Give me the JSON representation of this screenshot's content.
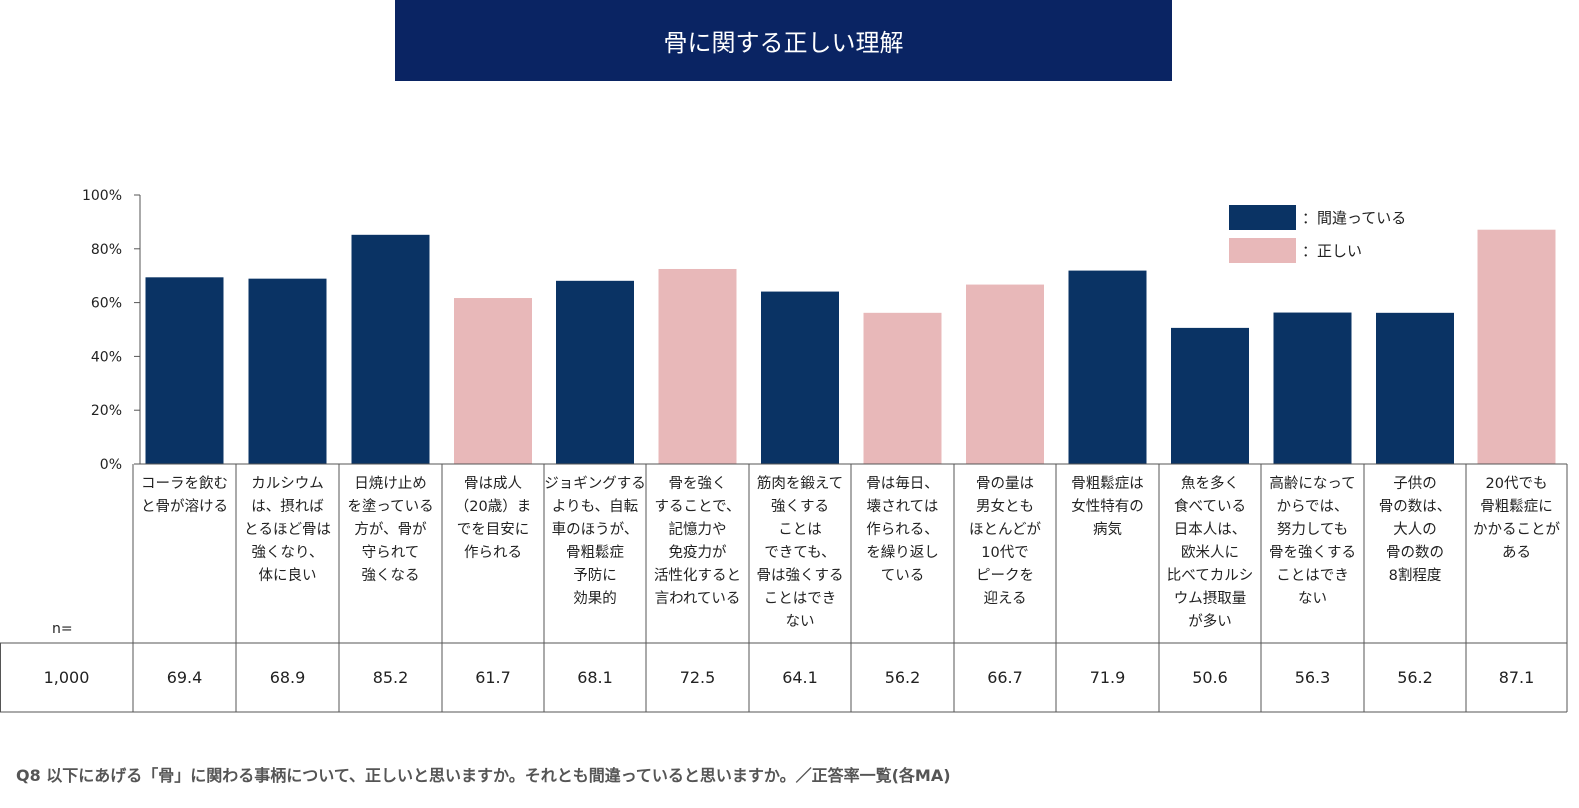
{
  "title": "骨に関する正しい理解",
  "colors": {
    "wrong": "#0a3364",
    "correct": "#e8b8b9",
    "banner": "#0a2463"
  },
  "legend": [
    {
      "label": "：間違っている",
      "color_key": "wrong"
    },
    {
      "label": "：正しい",
      "color_key": "correct"
    }
  ],
  "n_label": "n=",
  "n_value": "1,000",
  "question": "Q8  以下にあげる「骨」に関わる事柄について、正しいと思いますか。それとも間違っていると思いますか。／正答率一覧(各MA)",
  "chart_data": {
    "type": "bar",
    "ylim": [
      0,
      100
    ],
    "yticks": [
      "0%",
      "20%",
      "40%",
      "60%",
      "80%",
      "100%"
    ],
    "categories": [
      "コーラを飲む\nと骨が溶ける",
      "カルシウム\nは、摂れば\nとるほど骨は\n強くなり、\n体に良い",
      "日焼け止め\nを塗っている\n方が、骨が\n守られて\n強くなる",
      "骨は成人\n（20歳）ま\nでを目安に\n作られる",
      "ジョギングする\nよりも、自転\n車のほうが、\n骨粗鬆症\n予防に\n効果的",
      "骨を強く\nすることで、\n記憶力や\n免疫力が\n活性化すると\n言われている",
      "筋肉を鍛えて\n強くする\nことは\nできても、\n骨は強くする\nことはでき\nない",
      "骨は毎日、\n壊されては\n作られる、\nを繰り返し\nている",
      "骨の量は\n男女とも\nほとんどが\n10代で\nピークを\n迎える",
      "骨粗鬆症は\n女性特有の\n病気",
      "魚を多く\n食べている\n日本人は、\n欧米人に\n比べてカルシ\nウム摂取量\nが多い",
      "高齢になって\nからでは、\n努力しても\n骨を強くする\nことはでき\nない",
      "子供の\n骨の数は、\n大人の\n骨の数の\n8割程度",
      "20代でも\n骨粗鬆症に\nかかることが\nある"
    ],
    "values": [
      69.4,
      68.9,
      85.2,
      61.7,
      68.1,
      72.5,
      64.1,
      56.2,
      66.7,
      71.9,
      50.6,
      56.3,
      56.2,
      87.1
    ],
    "value_labels": [
      "69.4",
      "68.9",
      "85.2",
      "61.7",
      "68.1",
      "72.5",
      "64.1",
      "56.2",
      "66.7",
      "71.9",
      "50.6",
      "56.3",
      "56.2",
      "87.1"
    ],
    "bar_type": [
      "wrong",
      "wrong",
      "wrong",
      "correct",
      "wrong",
      "correct",
      "wrong",
      "correct",
      "correct",
      "wrong",
      "wrong",
      "wrong",
      "wrong",
      "correct"
    ]
  }
}
